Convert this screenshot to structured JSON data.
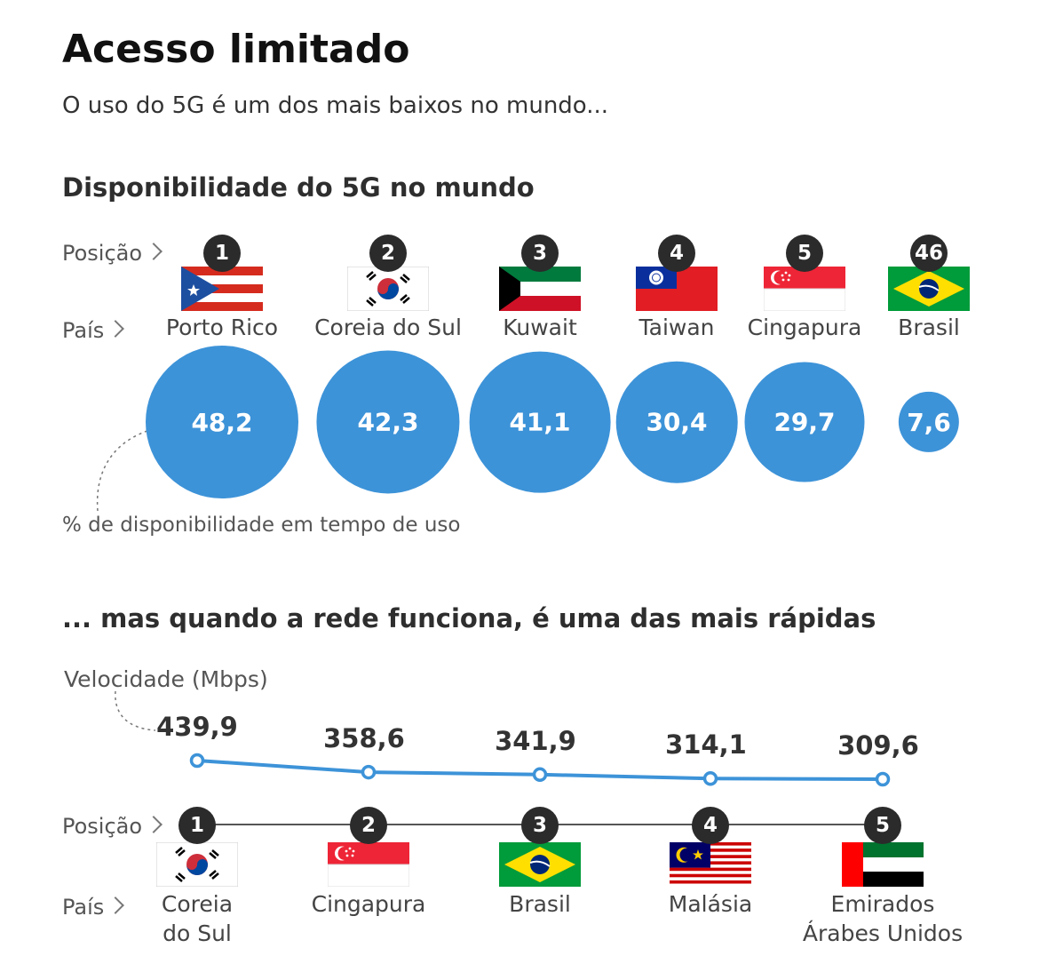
{
  "title": "Acesso limitado",
  "subtitle": "O uso do 5G é um dos mais baixos no mundo...",
  "colors": {
    "bubble": "#3d93d8",
    "line": "#3d93d8",
    "badge": "#2b2b2b"
  },
  "availability": {
    "heading": "Disponibilidade do 5G no mundo",
    "position_label": "Posição",
    "country_label": "País",
    "note": "% de disponibilidade em tempo de uso",
    "items": [
      {
        "rank": "1",
        "country": "Porto Rico",
        "value_label": "48,2",
        "flag": "puerto-rico-flag-icon"
      },
      {
        "rank": "2",
        "country": "Coreia do Sul",
        "value_label": "42,3",
        "flag": "south-korea-flag-icon"
      },
      {
        "rank": "3",
        "country": "Kuwait",
        "value_label": "41,1",
        "flag": "kuwait-flag-icon"
      },
      {
        "rank": "4",
        "country": "Taiwan",
        "value_label": "30,4",
        "flag": "taiwan-flag-icon"
      },
      {
        "rank": "5",
        "country": "Cingapura",
        "value_label": "29,7",
        "flag": "singapore-flag-icon"
      },
      {
        "rank": "46",
        "country": "Brasil",
        "value_label": "7,6",
        "flag": "brazil-flag-icon"
      }
    ]
  },
  "speed": {
    "heading": "... mas quando a rede funciona, é uma das mais rápidas",
    "axis_label": "Velocidade (Mbps)",
    "position_label": "Posição",
    "country_label": "País",
    "items": [
      {
        "rank": "1",
        "country_line1": "Coreia",
        "country_line2": "do Sul",
        "value_label": "439,9",
        "flag": "south-korea-flag-icon"
      },
      {
        "rank": "2",
        "country_line1": "Cingapura",
        "country_line2": "",
        "value_label": "358,6",
        "flag": "singapore-flag-icon"
      },
      {
        "rank": "3",
        "country_line1": "Brasil",
        "country_line2": "",
        "value_label": "341,9",
        "flag": "brazil-flag-icon"
      },
      {
        "rank": "4",
        "country_line1": "Malásia",
        "country_line2": "",
        "value_label": "314,1",
        "flag": "malaysia-flag-icon"
      },
      {
        "rank": "5",
        "country_line1": "Emirados",
        "country_line2": "Árabes Unidos",
        "value_label": "309,6",
        "flag": "uae-flag-icon"
      }
    ]
  },
  "chart_data": [
    {
      "type": "bubble",
      "title": "Disponibilidade do 5G no mundo",
      "categories": [
        "Porto Rico",
        "Coreia do Sul",
        "Kuwait",
        "Taiwan",
        "Cingapura",
        "Brasil"
      ],
      "positions": [
        1,
        2,
        3,
        4,
        5,
        46
      ],
      "values": [
        48.2,
        42.3,
        41.1,
        30.4,
        29.7,
        7.6
      ],
      "unit": "% de disponibilidade em tempo de uso"
    },
    {
      "type": "line",
      "title": "... mas quando a rede funciona, é uma das mais rápidas",
      "categories": [
        "Coreia do Sul",
        "Cingapura",
        "Brasil",
        "Malásia",
        "Emirados Árabes Unidos"
      ],
      "positions": [
        1,
        2,
        3,
        4,
        5
      ],
      "values": [
        439.9,
        358.6,
        341.9,
        314.1,
        309.6
      ],
      "ylabel": "Velocidade (Mbps)"
    }
  ]
}
